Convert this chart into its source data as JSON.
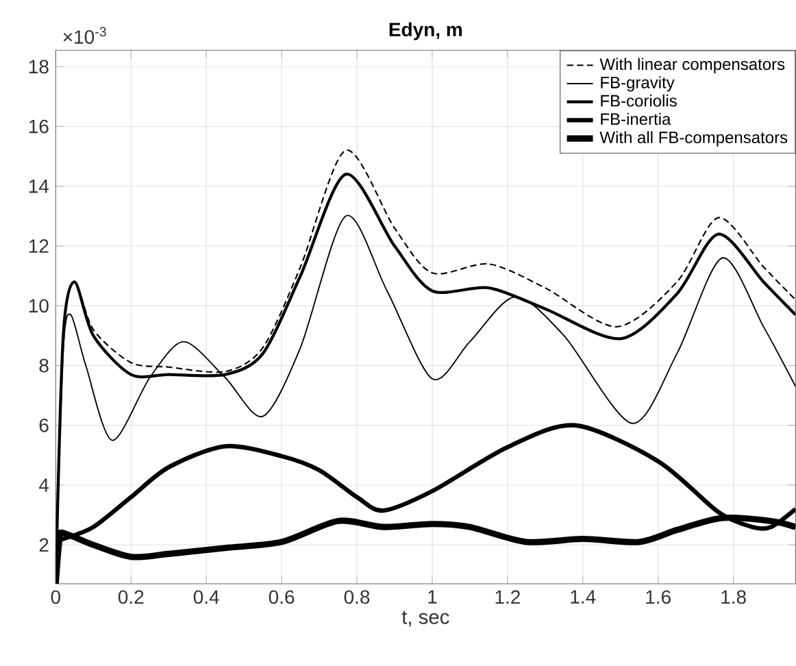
{
  "chart_data": {
    "type": "line",
    "title": "Edyn, m",
    "xlabel": "t, sec",
    "annotations": [
      "×10$^{-3}$"
    ],
    "xlim": [
      0,
      1.965
    ],
    "ylim": [
      0.7,
      18.55
    ],
    "xticks": [
      0,
      0.2,
      0.4,
      0.6,
      0.8,
      1,
      1.2,
      1.4,
      1.6,
      1.8
    ],
    "yticks": [
      2,
      4,
      6,
      8,
      10,
      12,
      14,
      16,
      18
    ],
    "grid": true,
    "legend": "top right",
    "series": [
      {
        "name": "With linear compensators",
        "color": "#000000",
        "line_style": "dashed",
        "x": [
          0,
          0.02,
          0.05,
          0.1,
          0.2,
          0.3,
          0.45,
          0.55,
          0.65,
          0.77,
          0.9,
          1.0,
          1.15,
          1.3,
          1.49,
          1.65,
          1.76,
          1.88,
          1.965
        ],
        "values": [
          0.7,
          9.0,
          10.8,
          9.2,
          8.1,
          7.95,
          7.8,
          8.6,
          11.3,
          15.2,
          12.6,
          11.1,
          11.4,
          10.6,
          9.3,
          10.8,
          12.95,
          11.3,
          10.2
        ]
      },
      {
        "name": "FB-gravity",
        "color": "#000000",
        "line_style": "solid",
        "x": [
          0,
          0.02,
          0.04,
          0.08,
          0.15,
          0.25,
          0.34,
          0.45,
          0.55,
          0.65,
          0.77,
          0.88,
          1.0,
          1.1,
          1.22,
          1.35,
          1.53,
          1.65,
          1.77,
          1.88,
          1.965
        ],
        "values": [
          0.7,
          8.5,
          9.7,
          8.0,
          5.5,
          7.6,
          8.8,
          7.6,
          6.3,
          8.6,
          13.0,
          10.5,
          7.56,
          8.8,
          10.3,
          9.0,
          6.07,
          8.4,
          11.6,
          9.3,
          7.3
        ]
      },
      {
        "name": "FB-coriolis",
        "color": "#000000",
        "line_style": "solid",
        "x": [
          0,
          0.02,
          0.05,
          0.1,
          0.2,
          0.3,
          0.45,
          0.55,
          0.65,
          0.77,
          0.9,
          1.0,
          1.15,
          1.3,
          1.5,
          1.65,
          1.76,
          1.88,
          1.965
        ],
        "values": [
          0.7,
          9.0,
          10.8,
          9.0,
          7.7,
          7.7,
          7.7,
          8.4,
          11.0,
          14.4,
          12.0,
          10.5,
          10.6,
          9.9,
          8.9,
          10.4,
          12.4,
          10.8,
          9.7
        ]
      },
      {
        "name": "FB-inertia",
        "color": "#000000",
        "line_style": "solid",
        "x": [
          0,
          0.01,
          0.02,
          0.1,
          0.2,
          0.3,
          0.45,
          0.6,
          0.7,
          0.8,
          0.87,
          1.0,
          1.2,
          1.38,
          1.6,
          1.76,
          1.85,
          1.9,
          1.965
        ],
        "values": [
          0.7,
          2.2,
          2.2,
          2.6,
          3.6,
          4.6,
          5.3,
          4.97,
          4.5,
          3.6,
          3.15,
          3.8,
          5.27,
          6.0,
          4.8,
          3.1,
          2.6,
          2.6,
          3.2
        ]
      },
      {
        "name": "With all FB-compensators",
        "color": "#000000",
        "line_style": "solid",
        "x": [
          0,
          0.01,
          0.02,
          0.1,
          0.2,
          0.3,
          0.45,
          0.6,
          0.75,
          0.87,
          1.0,
          1.1,
          1.25,
          1.4,
          1.55,
          1.65,
          1.77,
          1.9,
          1.965
        ],
        "values": [
          0.7,
          2.2,
          2.4,
          2.0,
          1.6,
          1.7,
          1.9,
          2.1,
          2.8,
          2.6,
          2.7,
          2.6,
          2.1,
          2.2,
          2.1,
          2.5,
          2.9,
          2.8,
          2.6
        ]
      }
    ]
  }
}
